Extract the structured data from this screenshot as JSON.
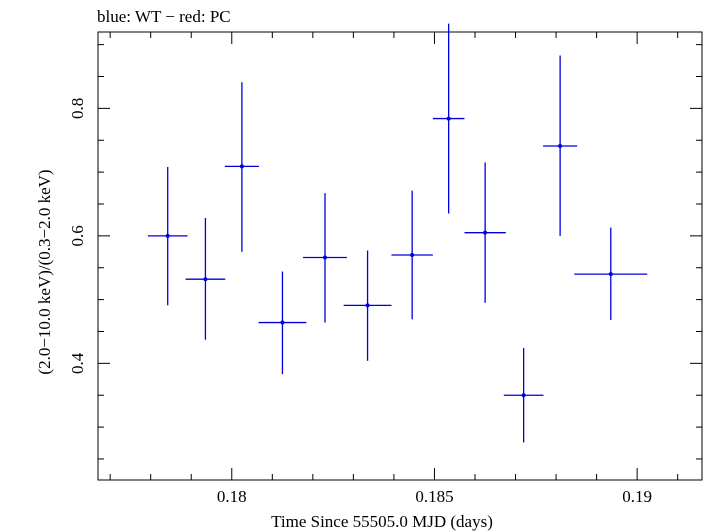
{
  "chart_data": {
    "type": "scatter",
    "title": "blue: WT − red: PC",
    "xlabel": "Time Since 55505.0 MJD (days)",
    "ylabel": "(2.0−10.0 keV)/(0.3−2.0 keV)",
    "xlim": [
      0.1767,
      0.1916
    ],
    "ylim": [
      0.217,
      0.9198
    ],
    "x_ticks": [
      0.18,
      0.185,
      0.19
    ],
    "x_tick_labels": [
      "0.18",
      "0.185",
      "0.19"
    ],
    "y_ticks": [
      0.4,
      0.6,
      0.8
    ],
    "y_tick_labels": [
      "0.4",
      "0.6",
      "0.8"
    ],
    "grid": false,
    "series": [
      {
        "color": "#0000dd",
        "points": [
          {
            "x": 0.17842,
            "y": 0.6,
            "xerr": 0.00049,
            "ylo": 0.491,
            "yhi": 0.708
          },
          {
            "x": 0.17935,
            "y": 0.532,
            "xerr": 0.00049,
            "ylo": 0.437,
            "yhi": 0.628
          },
          {
            "x": 0.18025,
            "y": 0.709,
            "xerr": 0.00042,
            "ylo": 0.575,
            "yhi": 0.841
          },
          {
            "x": 0.18125,
            "y": 0.464,
            "xerr": 0.00059,
            "ylo": 0.383,
            "yhi": 0.544
          },
          {
            "x": 0.1823,
            "y": 0.566,
            "xerr": 0.00054,
            "ylo": 0.464,
            "yhi": 0.667
          },
          {
            "x": 0.18335,
            "y": 0.491,
            "xerr": 0.00059,
            "ylo": 0.404,
            "yhi": 0.577
          },
          {
            "x": 0.18445,
            "y": 0.57,
            "xerr": 0.00051,
            "ylo": 0.469,
            "yhi": 0.671
          },
          {
            "x": 0.18535,
            "y": 0.784,
            "xerr": 0.00039,
            "ylo": 0.635,
            "yhi": 0.933
          },
          {
            "x": 0.18625,
            "y": 0.605,
            "xerr": 0.00051,
            "ylo": 0.495,
            "yhi": 0.715
          },
          {
            "x": 0.1872,
            "y": 0.35,
            "xerr": 0.00049,
            "ylo": 0.276,
            "yhi": 0.424
          },
          {
            "x": 0.1881,
            "y": 0.741,
            "xerr": 0.00042,
            "ylo": 0.6,
            "yhi": 0.883
          },
          {
            "x": 0.18935,
            "y": 0.54,
            "xerr": 0.0009,
            "ylo": 0.468,
            "yhi": 0.613
          }
        ]
      }
    ]
  }
}
